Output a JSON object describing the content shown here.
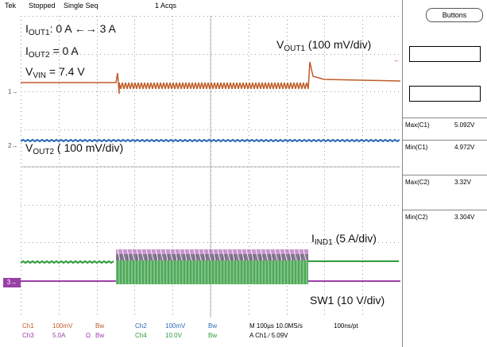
{
  "header": {
    "brand": "Tek",
    "status": "Stopped",
    "mode": "Single Seq",
    "acqs": "1 Acqs"
  },
  "annotations": {
    "iout1_label": "I",
    "iout1_sub": "OUT1",
    "iout1_value": ": 0 A ←→ 3 A",
    "iout2_label": "I",
    "iout2_sub": "OUT2",
    "iout2_value": " = 0 A",
    "vvin_label": "V",
    "vvin_sub": "VIN",
    "vvin_value": " = 7.4 V",
    "vout1_label": "V",
    "vout1_sub": "OUT1",
    "vout1_value": " (100 mV/div)",
    "vout2_label": "V",
    "vout2_sub": "OUT2",
    "vout2_value": " ( 100 mV/div)",
    "iind1_label": "I",
    "iind1_sub": "IND1",
    "iind1_value": " (5 A/div)",
    "sw1": "SW1 (10 V/div)"
  },
  "markers": {
    "ch1": "1",
    "ch2": "2",
    "ch3": "3"
  },
  "side_panel": {
    "buttons_label": "Buttons",
    "measurements": [
      {
        "label": "Max(C1)",
        "value": "5.092V",
        "color": "#c05a28"
      },
      {
        "label": "Min(C1)",
        "value": "4.972V",
        "color": "#c05a28"
      },
      {
        "label": "Max(C2)",
        "value": "3.32V",
        "color": "#2a6ab8"
      },
      {
        "label": "Min(C2)",
        "value": "3.304V",
        "color": "#2a6ab8"
      }
    ]
  },
  "footer": {
    "ch1": "Ch1",
    "ch1_scale": "100mV",
    "ch1_bw": "Bw",
    "ch2": "Ch2",
    "ch2_scale": "100mV",
    "ch2_bw": "Bw",
    "ch3": "Ch3",
    "ch3_scale": "5.0A",
    "ch3_ohm": "Ω",
    "ch3_bw": "Bw",
    "ch4": "Ch4",
    "ch4_scale": "10.0V",
    "ch4_bw": "Bw",
    "timebase": "M 100µs 10.0MS/s",
    "record": "100ns/pt",
    "trigger": "A  Ch1  ∕  5.09V"
  },
  "colors": {
    "ch1": "#c05a28",
    "ch2": "#2a6ab8",
    "ch3": "#9b3fa8",
    "ch4": "#2e9a3a"
  }
}
